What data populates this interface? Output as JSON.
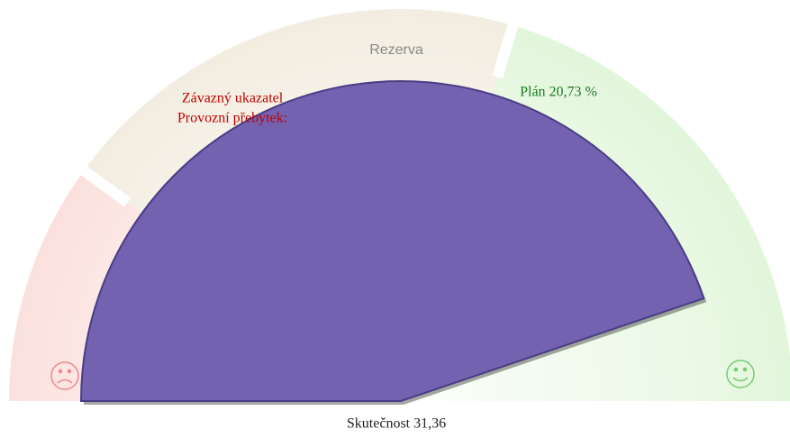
{
  "chart_data": {
    "type": "gauge",
    "ylim": [
      0,
      35
    ],
    "value": 31.36,
    "value_label": "Skutečnost 31,36",
    "plan": 20.73,
    "plan_label": "Plán 20,73 %",
    "bands": [
      {
        "from": 0,
        "to": 7,
        "color": "#fbe1dd"
      },
      {
        "from": 7,
        "to": 20.73,
        "color": "#f2ede0",
        "label": "Rezerva"
      },
      {
        "from": 20.73,
        "to": 35,
        "color": "#e2f6db"
      }
    ],
    "threshold_label": [
      "Závazný ukazatel",
      "Provozní přebytek:"
    ],
    "color": "#7262b0"
  }
}
